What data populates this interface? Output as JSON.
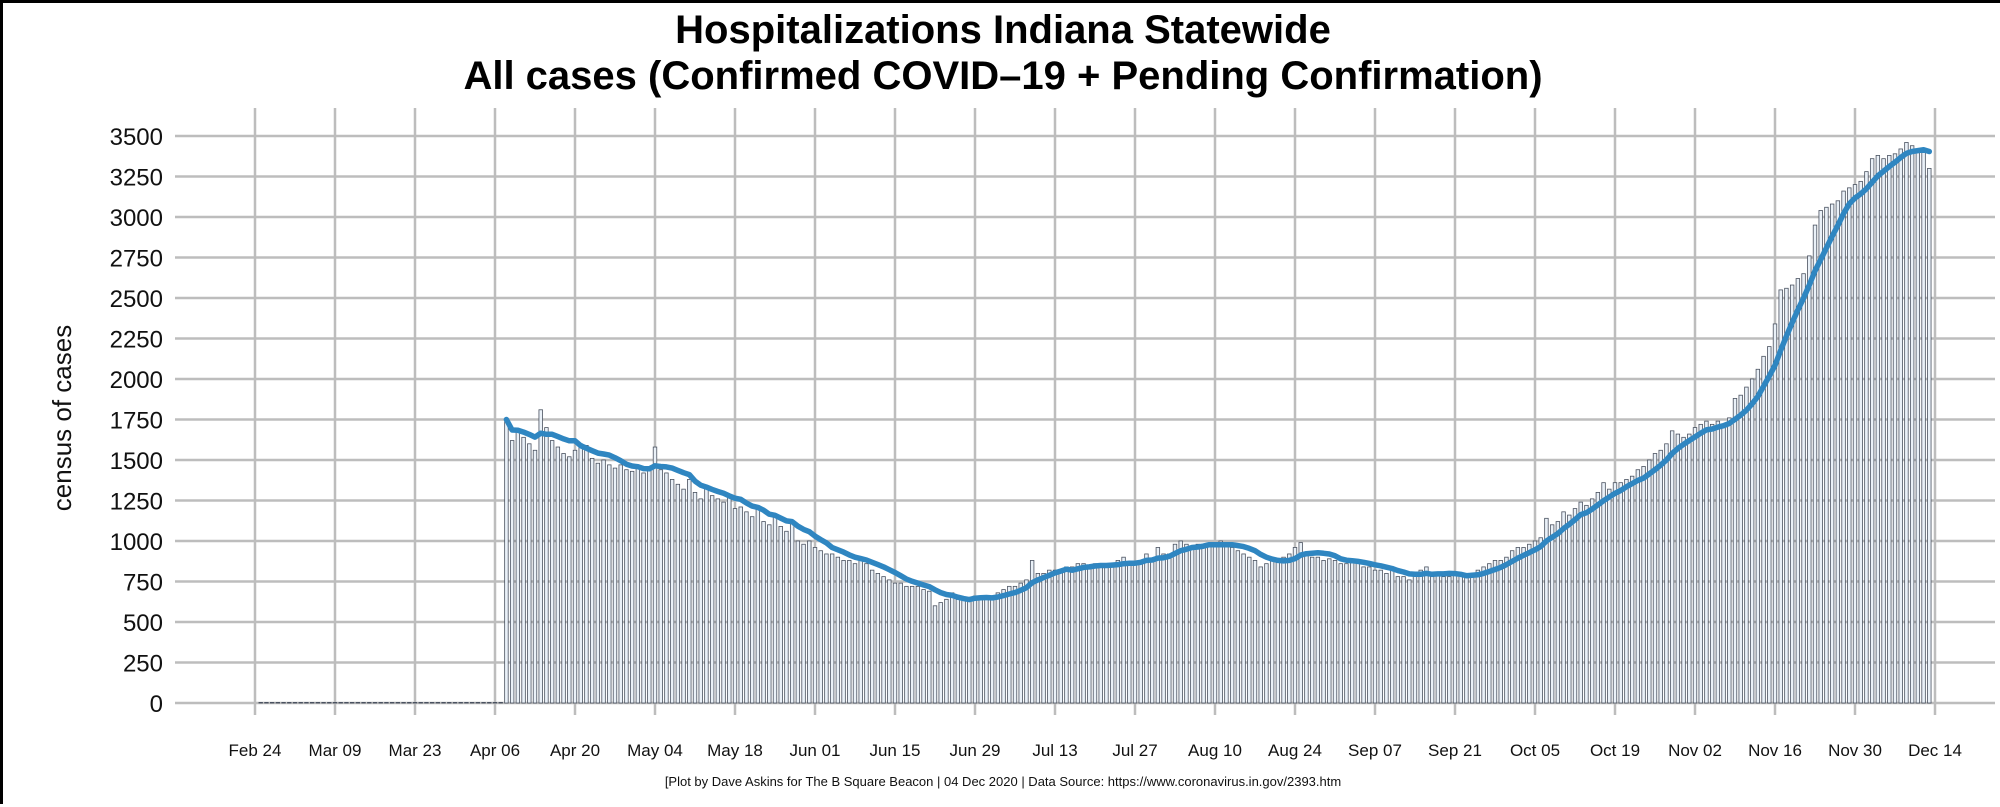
{
  "chart_data": {
    "type": "bar",
    "title_line1": "Hospitalizations Indiana Statewide",
    "title_line2": "All cases (Confirmed COVID–19 + Pending Confirmation)",
    "ylabel": "census of cases",
    "credit": "[Plot by Dave Askins for The B Square Beacon | 04 Dec 2020 | Data Source: https://www.coronavirus.in.gov/2393.htm",
    "ylim": [
      0,
      3500
    ],
    "y_ticks": [
      0,
      250,
      500,
      750,
      1000,
      1250,
      1500,
      1750,
      2000,
      2250,
      2500,
      2750,
      3000,
      3250,
      3500
    ],
    "x_tick_labels": [
      "Feb 24",
      "Mar 09",
      "Mar 23",
      "Apr 06",
      "Apr 20",
      "May 04",
      "May 18",
      "Jun 01",
      "Jun 15",
      "Jun 29",
      "Jul 13",
      "Jul 27",
      "Aug 10",
      "Aug 24",
      "Sep 07",
      "Sep 21",
      "Oct 05",
      "Oct 19",
      "Nov 02",
      "Nov 16",
      "Nov 30",
      "Dec 14"
    ],
    "x_tick_days": [
      0,
      14,
      28,
      42,
      56,
      70,
      84,
      98,
      112,
      126,
      140,
      154,
      168,
      182,
      196,
      210,
      224,
      238,
      252,
      266,
      280,
      294
    ],
    "x_range_days": [
      -14,
      294
    ],
    "x_day0": "Feb 24",
    "bar_start_day": 1,
    "daily_values": [
      0,
      0,
      0,
      0,
      0,
      0,
      0,
      0,
      0,
      0,
      0,
      0,
      0,
      0,
      0,
      0,
      0,
      0,
      0,
      0,
      0,
      0,
      0,
      0,
      0,
      0,
      0,
      0,
      0,
      0,
      0,
      0,
      0,
      0,
      0,
      0,
      0,
      0,
      0,
      0,
      0,
      0,
      0,
      1750,
      1620,
      1680,
      1640,
      1600,
      1560,
      1810,
      1700,
      1620,
      1580,
      1540,
      1520,
      1560,
      1600,
      1590,
      1510,
      1480,
      1500,
      1470,
      1450,
      1470,
      1440,
      1430,
      1450,
      1420,
      1460,
      1580,
      1440,
      1420,
      1380,
      1350,
      1320,
      1380,
      1300,
      1260,
      1340,
      1280,
      1260,
      1240,
      1270,
      1200,
      1210,
      1180,
      1150,
      1200,
      1120,
      1100,
      1150,
      1090,
      1060,
      1120,
      1000,
      980,
      1000,
      960,
      940,
      920,
      920,
      900,
      880,
      880,
      860,
      880,
      860,
      820,
      800,
      780,
      760,
      740,
      740,
      720,
      720,
      720,
      700,
      690,
      600,
      620,
      640,
      680,
      640,
      640,
      650,
      660,
      640,
      650,
      660,
      680,
      700,
      720,
      720,
      740,
      760,
      880,
      800,
      800,
      820,
      820,
      820,
      840,
      840,
      860,
      860,
      840,
      860,
      840,
      840,
      860,
      880,
      900,
      860,
      860,
      880,
      920,
      880,
      960,
      920,
      920,
      980,
      1000,
      980,
      960,
      980,
      960,
      980,
      980,
      1000,
      980,
      960,
      940,
      920,
      900,
      880,
      840,
      860,
      880,
      880,
      900,
      920,
      960,
      990,
      920,
      900,
      900,
      880,
      890,
      880,
      860,
      860,
      880,
      870,
      840,
      840,
      820,
      820,
      800,
      820,
      780,
      780,
      760,
      800,
      820,
      840,
      780,
      800,
      780,
      780,
      790,
      790,
      780,
      800,
      820,
      840,
      860,
      880,
      880,
      900,
      940,
      960,
      960,
      980,
      1000,
      1020,
      1140,
      1100,
      1120,
      1180,
      1160,
      1200,
      1240,
      1220,
      1260,
      1300,
      1360,
      1320,
      1360,
      1360,
      1380,
      1400,
      1440,
      1460,
      1500,
      1540,
      1560,
      1600,
      1680,
      1660,
      1640,
      1660,
      1700,
      1720,
      1740,
      1720,
      1740,
      1700,
      1760,
      1880,
      1900,
      1950,
      2000,
      2060,
      2140,
      2200,
      2340,
      2550,
      2560,
      2580,
      2620,
      2650,
      2760,
      2950,
      3040,
      3060,
      3080,
      3100,
      3160,
      3180,
      3200,
      3220,
      3280,
      3360,
      3380,
      3360,
      3380,
      3390,
      3420,
      3460,
      3440,
      3420,
      3400,
      3300
    ]
  }
}
